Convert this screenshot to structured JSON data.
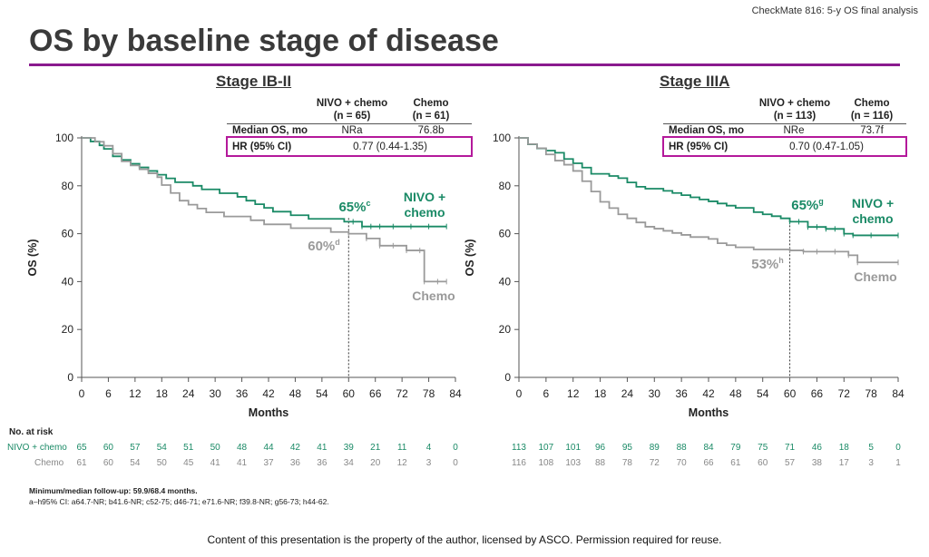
{
  "header_tag": "CheckMate 816: 5-y OS final analysis",
  "title": "OS by baseline stage of disease",
  "colors": {
    "nivo": "#1a8a66",
    "chemo": "#9a9a9a",
    "accent": "#8a1a8e",
    "hr_box": "#b4199b"
  },
  "risk_header": "No. at risk",
  "risk_labels": {
    "nivo": "NIVO + chemo",
    "chemo": "Chemo"
  },
  "footnote_1": "Minimum/median follow-up: 59.9/68.4 months.",
  "footnote_2": "a–h95% CI: a64.7-NR; b41.6-NR; c52-75; d46-71; e71.6-NR; f39.8-NR; g56-73; h44-62.",
  "copyright": "Content of this presentation is the property of the author, licensed by ASCO. Permission required for reuse.",
  "panels": [
    {
      "title": "Stage IB-II",
      "table": {
        "col_nivo": "NIVO + chemo",
        "col_nivo_n": "(n = 65)",
        "col_chemo": "Chemo",
        "col_chemo_n": "(n = 61)",
        "row1_label": "Median OS, mo",
        "row1_nivo": "NRa",
        "row1_chemo": "76.8b",
        "row2_label": "HR (95% CI)",
        "row2_value": "0.77 (0.44-1.35)"
      },
      "labels": {
        "nivo_pct": "65%c",
        "chemo_pct": "60%d",
        "nivo_name_1": "NIVO +",
        "nivo_name_2": "chemo",
        "chemo_name": "Chemo"
      },
      "risk_nivo": [
        65,
        60,
        57,
        54,
        51,
        50,
        48,
        44,
        42,
        41,
        39,
        21,
        11,
        4,
        0
      ],
      "risk_chemo": [
        61,
        60,
        54,
        50,
        45,
        41,
        41,
        37,
        36,
        36,
        34,
        20,
        12,
        3,
        0
      ]
    },
    {
      "title": "Stage IIIA",
      "table": {
        "col_nivo": "NIVO + chemo",
        "col_nivo_n": "(n = 113)",
        "col_chemo": "Chemo",
        "col_chemo_n": "(n = 116)",
        "row1_label": "Median OS, mo",
        "row1_nivo": "NRe",
        "row1_chemo": "73.7f",
        "row2_label": "HR (95% CI)",
        "row2_value": "0.70 (0.47-1.05)"
      },
      "labels": {
        "nivo_pct": "65%g",
        "chemo_pct": "53%h",
        "nivo_name_1": "NIVO +",
        "nivo_name_2": "chemo",
        "chemo_name": "Chemo"
      },
      "risk_nivo": [
        113,
        107,
        101,
        96,
        95,
        89,
        88,
        84,
        79,
        75,
        71,
        46,
        18,
        5,
        0
      ],
      "risk_chemo": [
        116,
        108,
        103,
        88,
        78,
        72,
        70,
        66,
        61,
        60,
        57,
        38,
        17,
        3,
        1
      ]
    }
  ],
  "chart_data": [
    {
      "type": "line",
      "title": "Stage IB-II",
      "xlabel": "Months",
      "ylabel": "OS (%)",
      "xlim": [
        0,
        84
      ],
      "ylim": [
        0,
        100
      ],
      "xticks": [
        0,
        6,
        12,
        18,
        24,
        30,
        36,
        42,
        48,
        54,
        60,
        66,
        72,
        78,
        84
      ],
      "yticks": [
        0,
        20,
        40,
        60,
        80,
        100
      ],
      "reference_x": 60,
      "series": [
        {
          "name": "NIVO + chemo",
          "x": [
            0,
            2,
            4,
            5,
            7,
            9,
            11,
            13,
            15,
            17,
            19,
            21,
            23,
            25,
            27,
            29,
            31,
            33,
            35,
            37,
            39,
            41,
            43,
            45,
            47,
            49,
            51,
            53,
            55,
            57,
            59,
            61,
            63,
            65,
            67,
            70,
            74,
            78,
            82
          ],
          "y": [
            100,
            98.5,
            96.9,
            95.4,
            92.3,
            90.8,
            89.2,
            87.7,
            86.2,
            84.6,
            83.1,
            81.5,
            81.5,
            80,
            78.5,
            78.5,
            76.9,
            76.9,
            75.4,
            73.8,
            72.3,
            70.8,
            69.2,
            69.2,
            67.7,
            67.7,
            66.2,
            66.2,
            66.2,
            66.2,
            65,
            65,
            63,
            63,
            63,
            63,
            63,
            63,
            63
          ]
        },
        {
          "name": "Chemo",
          "x": [
            0,
            3,
            5,
            7,
            9,
            11,
            13,
            15,
            17,
            18,
            20,
            22,
            24,
            26,
            28,
            30,
            32,
            34,
            36,
            38,
            41,
            44,
            47,
            50,
            53,
            56,
            60,
            64,
            67,
            70,
            73,
            76,
            77,
            80,
            82
          ],
          "y": [
            100,
            98.4,
            96.7,
            93.4,
            90.2,
            88.5,
            86.9,
            85.2,
            83.6,
            80.3,
            77,
            73.8,
            72.1,
            70.5,
            68.9,
            68.9,
            67.2,
            67.2,
            67.2,
            65.6,
            63.9,
            63.9,
            62.3,
            62.3,
            62.3,
            60.7,
            60,
            58,
            55,
            55,
            53,
            53,
            40,
            40,
            40
          ]
        }
      ]
    },
    {
      "type": "line",
      "title": "Stage IIIA",
      "xlabel": "Months",
      "ylabel": "OS (%)",
      "xlim": [
        0,
        84
      ],
      "ylim": [
        0,
        100
      ],
      "xticks": [
        0,
        6,
        12,
        18,
        24,
        30,
        36,
        42,
        48,
        54,
        60,
        66,
        72,
        78,
        84
      ],
      "yticks": [
        0,
        20,
        40,
        60,
        80,
        100
      ],
      "reference_x": 60,
      "series": [
        {
          "name": "NIVO + chemo",
          "x": [
            0,
            2,
            4,
            6,
            8,
            10,
            12,
            14,
            16,
            18,
            20,
            22,
            24,
            26,
            28,
            30,
            32,
            34,
            36,
            38,
            40,
            42,
            44,
            46,
            48,
            50,
            52,
            54,
            56,
            58,
            60,
            62,
            64,
            66,
            68,
            70,
            72,
            74,
            78,
            84
          ],
          "y": [
            100,
            97.3,
            95.6,
            94.7,
            93.8,
            91.2,
            89.4,
            87.6,
            85,
            85,
            84.1,
            83.2,
            81.4,
            79.6,
            78.8,
            78.8,
            77.9,
            77,
            76.1,
            75.2,
            74.3,
            73.5,
            72.6,
            71.7,
            70.8,
            70.8,
            69,
            68.1,
            67.3,
            66.4,
            65,
            65,
            62.8,
            62.8,
            62,
            62,
            60,
            59.3,
            59.3,
            59.3
          ]
        },
        {
          "name": "Chemo",
          "x": [
            0,
            2,
            4,
            6,
            8,
            10,
            12,
            14,
            16,
            18,
            20,
            22,
            24,
            26,
            28,
            30,
            32,
            34,
            36,
            38,
            40,
            42,
            44,
            46,
            48,
            50,
            52,
            54,
            56,
            58,
            60,
            63,
            66,
            70,
            73,
            75,
            84
          ],
          "y": [
            100,
            97.4,
            95.7,
            93.1,
            90.5,
            88.8,
            86.2,
            81.9,
            77.6,
            73.3,
            70.7,
            68.1,
            66.4,
            64.7,
            62.9,
            62.1,
            61.2,
            60.3,
            59.5,
            58.6,
            58.6,
            57.8,
            56,
            55.2,
            54.3,
            54.3,
            53.4,
            53.4,
            53.4,
            53.4,
            53,
            52.5,
            52.5,
            52.5,
            51,
            48,
            48
          ]
        }
      ]
    }
  ]
}
